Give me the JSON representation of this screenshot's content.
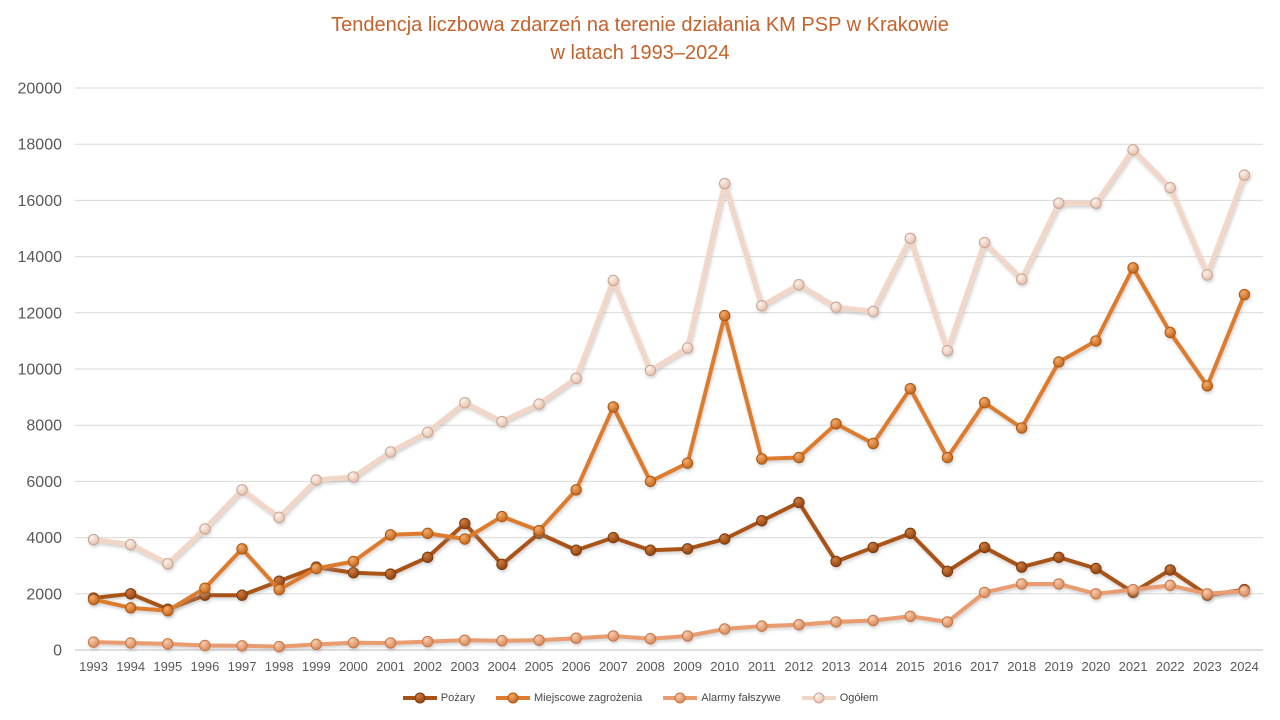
{
  "title": {
    "line1": "Tendencja liczbowa zdarzeń na terenie działania KM PSP w Krakowie",
    "line2": "w latach 1993–2024"
  },
  "colors": {
    "title": "#C4622B",
    "gridline": "#D9D9D9",
    "zero_axis_line": "#BFBFBF",
    "tick_label": "#595959",
    "legend_text": "#484848",
    "background": "#FFFFFF"
  },
  "chart_data": {
    "type": "line",
    "title": "Tendencja liczbowa zdarzeń na terenie działania KM PSP w Krakowie w latach 1993–2024",
    "xlabel": "",
    "ylabel": "",
    "ylim": [
      0,
      20000
    ],
    "ytick_step": 2000,
    "yticks": [
      0,
      2000,
      4000,
      6000,
      8000,
      10000,
      12000,
      14000,
      16000,
      18000,
      20000
    ],
    "grid": true,
    "legend_position": "bottom",
    "categories": [
      "1993",
      "1994",
      "1995",
      "1996",
      "1997",
      "1998",
      "1999",
      "2000",
      "2001",
      "2002",
      "2003",
      "2004",
      "2005",
      "2006",
      "2007",
      "2008",
      "2009",
      "2010",
      "2011",
      "2012",
      "2013",
      "2014",
      "2015",
      "2016",
      "2017",
      "2018",
      "2019",
      "2020",
      "2021",
      "2022",
      "2023",
      "2024"
    ],
    "series": [
      {
        "id": "pozary",
        "name": "Pożary",
        "color": "#AA5216",
        "marker_light": "#D07C3D",
        "marker_dark": "#8A3E0C",
        "marker_edge": "#7E3A0E",
        "values": [
          1850,
          2000,
          1450,
          1950,
          1950,
          2450,
          2950,
          2750,
          2700,
          3300,
          4500,
          3050,
          4150,
          3550,
          4000,
          3550,
          3600,
          3950,
          4600,
          5250,
          3150,
          3650,
          4150,
          2800,
          3650,
          2950,
          3300,
          2900,
          2050,
          2850,
          1950,
          2150
        ]
      },
      {
        "id": "miejscowe-zagrozenia",
        "name": "Miejscowe zagrożenia",
        "color": "#DE7C2E",
        "marker_light": "#F4AC6C",
        "marker_dark": "#BE5F13",
        "marker_edge": "#AD580F",
        "values": [
          1800,
          1500,
          1400,
          2200,
          3600,
          2150,
          2900,
          3150,
          4100,
          4150,
          3950,
          4750,
          4250,
          5700,
          8650,
          6000,
          6650,
          11900,
          6800,
          6850,
          8050,
          7350,
          9300,
          6850,
          8800,
          7900,
          10250,
          11000,
          13600,
          11300,
          9400,
          12650
        ]
      },
      {
        "id": "alarmy-falszywe",
        "name": "Alarmy fałszywe",
        "color": "#E99C70",
        "marker_light": "#F8CDAF",
        "marker_dark": "#D5814F",
        "marker_edge": "#C77844",
        "values": [
          280,
          250,
          220,
          160,
          150,
          120,
          200,
          260,
          250,
          300,
          350,
          330,
          350,
          420,
          500,
          400,
          500,
          750,
          850,
          900,
          1000,
          1050,
          1200,
          1000,
          2050,
          2350,
          2350,
          2000,
          2150,
          2300,
          2000,
          2100
        ]
      },
      {
        "id": "ogolem",
        "name": "Ogółem",
        "color": "#F2D7C8",
        "marker_light": "#FDF2EB",
        "marker_dark": "#E4BBA6",
        "marker_edge": "#C9A694",
        "values": [
          3930,
          3750,
          3070,
          4310,
          5700,
          4720,
          6050,
          6160,
          7050,
          7750,
          8800,
          8130,
          8750,
          9670,
          13150,
          9950,
          10750,
          16600,
          12250,
          13000,
          12200,
          12050,
          14650,
          10650,
          14500,
          13200,
          15900,
          15900,
          17800,
          16450,
          13350,
          16900
        ]
      }
    ]
  }
}
